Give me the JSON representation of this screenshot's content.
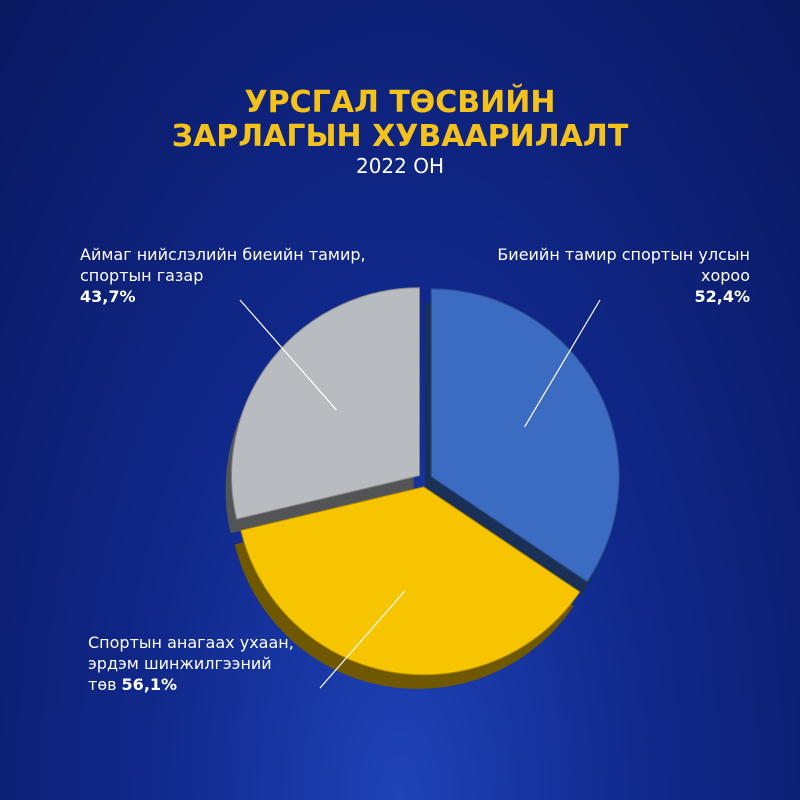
{
  "chart_data": {
    "type": "pie",
    "title": "УРСГАЛ ТӨСВИЙН ЗАРЛАГЫН ХУВААРИЛАЛТ",
    "subtitle": "2022 ОН",
    "categories": [
      "Биеийн тамир спортын улсын хороо",
      "Спортын анагаах ухаан, эрдэм шинжилгээний төв",
      "Аймаг нийслэлийн биеийн тамир, спортын газар"
    ],
    "values": [
      52.4,
      56.1,
      43.7
    ],
    "value_labels": [
      "52,4%",
      "56,1%",
      "43,7%"
    ],
    "colors": [
      "#3c6bc2",
      "#f6c400",
      "#b8bbbf"
    ]
  }
}
